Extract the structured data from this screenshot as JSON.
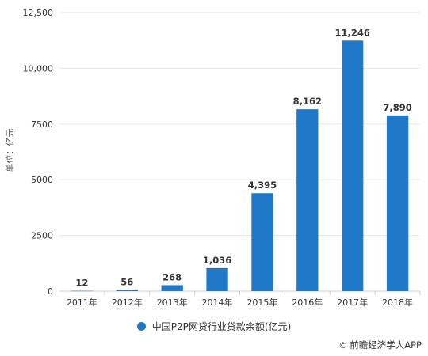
{
  "chart_data": {
    "type": "bar",
    "categories": [
      "2011年",
      "2012年",
      "2013年",
      "2014年",
      "2015年",
      "2016年",
      "2017年",
      "2018年"
    ],
    "series": [
      {
        "name": "中国P2P网贷行业贷款余额(亿元)",
        "values": [
          12,
          56,
          268,
          1036,
          4395,
          8162,
          11246,
          7890
        ],
        "labels": [
          "12",
          "56",
          "268",
          "1,036",
          "4,395",
          "8,162",
          "11,246",
          "7,890"
        ],
        "color": "#1F78C8"
      }
    ],
    "ylabel": "单位：亿元",
    "ylim": [
      0,
      12500
    ],
    "yticks": [
      0,
      2500,
      5000,
      7500,
      10000,
      12500
    ],
    "ytick_labels": [
      "0",
      "2500",
      "5000",
      "7500",
      "10,000",
      "12,500"
    ],
    "grid": true,
    "legend_position": "bottom"
  },
  "source": {
    "icon": "copyright-icon",
    "icon_glyph": "©",
    "text": "前瞻经济学人APP"
  }
}
